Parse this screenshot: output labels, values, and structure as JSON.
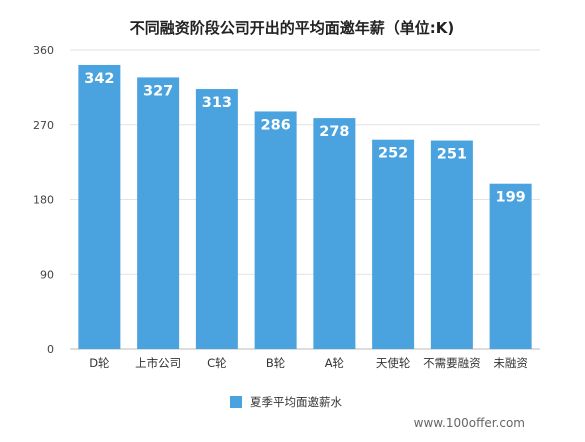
{
  "chart_data": {
    "type": "bar",
    "title": "不同融资阶段公司开出的平均面邀年薪（单位:K)",
    "categories": [
      "D轮",
      "上市公司",
      "C轮",
      "B轮",
      "A轮",
      "天使轮",
      "不需要融资",
      "未融资"
    ],
    "series": [
      {
        "name": "夏季平均面邀薪水",
        "values": [
          342,
          327,
          313,
          286,
          278,
          252,
          251,
          199
        ]
      }
    ],
    "ylim": [
      0,
      360
    ],
    "yticks": [
      0,
      90,
      180,
      270,
      360
    ],
    "grid": true,
    "legend_position": "bottom-center",
    "bar_color": "#4aa3df"
  },
  "watermark": "www.100offer.com"
}
